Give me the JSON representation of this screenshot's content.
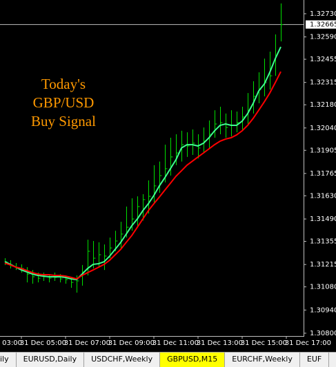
{
  "chart_data": {
    "type": "ohlc",
    "x": [
      4.25,
      4.5,
      4.75,
      5,
      5.25,
      5.5,
      5.75,
      6,
      6.25,
      6.5,
      6.75,
      7,
      7.25,
      7.5,
      7.75,
      8,
      8.25,
      8.5,
      8.75,
      9,
      9.25,
      9.5,
      9.75,
      10,
      10.25,
      10.5,
      10.75,
      11,
      11.25,
      11.5,
      11.75,
      12,
      12.25,
      12.5,
      12.75,
      13,
      13.25,
      13.5,
      13.75,
      14,
      14.25,
      14.5,
      14.75,
      15,
      15.25,
      15.5,
      15.75,
      16,
      16.25,
      16.5,
      16.75
    ],
    "xlim": [
      4.03125,
      17.78125
    ],
    "xticks": [
      {
        "value": 3,
        "label": "03:00"
      },
      {
        "value": 5,
        "label": "31 Dec 05:00"
      },
      {
        "value": 7,
        "label": "31 Dec 07:00"
      },
      {
        "value": 9,
        "label": "31 Dec 09:00"
      },
      {
        "value": 11,
        "label": "31 Dec 11:00"
      },
      {
        "value": 13,
        "label": "31 Dec 13:00"
      },
      {
        "value": 15,
        "label": "31 Dec 15:00"
      },
      {
        "value": 17,
        "label": "31 Dec 17:00"
      }
    ],
    "ylim": [
      1.30783,
      1.32813
    ],
    "yticks": [
      {
        "value": 1.3273,
        "label": "1.32730"
      },
      {
        "value": 1.3259,
        "label": "1.32590"
      },
      {
        "value": 1.32455,
        "label": "1.32455"
      },
      {
        "value": 1.32315,
        "label": "1.32315"
      },
      {
        "value": 1.3218,
        "label": "1.32180"
      },
      {
        "value": 1.3204,
        "label": "1.32040"
      },
      {
        "value": 1.31905,
        "label": "1.31905"
      },
      {
        "value": 1.31765,
        "label": "1.31765"
      },
      {
        "value": 1.3163,
        "label": "1.31630"
      },
      {
        "value": 1.3149,
        "label": "1.31490"
      },
      {
        "value": 1.31355,
        "label": "1.31355"
      },
      {
        "value": 1.31215,
        "label": "1.31215"
      },
      {
        "value": 1.3108,
        "label": "1.31080"
      },
      {
        "value": 1.3094,
        "label": "1.30940"
      },
      {
        "value": 1.308,
        "label": "1.30800"
      }
    ],
    "series": [
      {
        "type": "ohlc",
        "color": "#00e000",
        "high": [
          1.31253,
          1.31241,
          1.31224,
          1.31216,
          1.31199,
          1.31182,
          1.31166,
          1.31166,
          1.31157,
          1.31166,
          1.31157,
          1.31149,
          1.31141,
          1.31149,
          1.31212,
          1.31365,
          1.31357,
          1.31349,
          1.31336,
          1.31378,
          1.31419,
          1.31473,
          1.31565,
          1.31615,
          1.31627,
          1.3164,
          1.31723,
          1.31815,
          1.31837,
          1.31939,
          1.31981,
          1.32002,
          1.32023,
          1.32014,
          1.32031,
          1.32002,
          1.32043,
          1.32085,
          1.32147,
          1.32168,
          1.32127,
          1.32147,
          1.32139,
          1.32168,
          1.32251,
          1.32322,
          1.32376,
          1.32459,
          1.32501,
          1.32605,
          1.32792
        ],
        "low": [
          1.31212,
          1.31191,
          1.31182,
          1.31166,
          1.31107,
          1.31099,
          1.31107,
          1.31116,
          1.31107,
          1.31116,
          1.31107,
          1.31099,
          1.31074,
          1.31045,
          1.31087,
          1.31149,
          1.31191,
          1.31199,
          1.31182,
          1.31253,
          1.31295,
          1.31315,
          1.31378,
          1.31419,
          1.3144,
          1.31481,
          1.31523,
          1.31586,
          1.31648,
          1.31711,
          1.31752,
          1.31815,
          1.31837,
          1.31865,
          1.31877,
          1.31856,
          1.31889,
          1.31919,
          1.31981,
          1.32002,
          1.31981,
          1.31989,
          1.32014,
          1.32031,
          1.32064,
          1.32127,
          1.32189,
          1.32231,
          1.32272,
          1.32355,
          1.32563
        ],
        "close": [
          1.31232,
          1.31212,
          1.31199,
          1.31191,
          1.31157,
          1.31141,
          1.31132,
          1.31141,
          1.31132,
          1.31137,
          1.31128,
          1.31124,
          1.31107,
          1.31116,
          1.3117,
          1.31295,
          1.31253,
          1.31274,
          1.31266,
          1.31315,
          1.31357,
          1.31399,
          1.3144,
          1.3149,
          1.31565,
          1.31607,
          1.31627,
          1.3169,
          1.31752,
          1.31794,
          1.31865,
          1.31889,
          1.31939,
          1.31931,
          1.31948,
          1.31919,
          1.3196,
          1.32002,
          1.32064,
          1.32072,
          1.32043,
          1.32056,
          1.32072,
          1.32106,
          1.32147,
          1.32231,
          1.32272,
          1.32314,
          1.32355,
          1.3248,
          1.32665
        ]
      },
      {
        "type": "line",
        "color": "#3dff8f",
        "values": [
          1.31232,
          1.31216,
          1.31199,
          1.31182,
          1.3117,
          1.31157,
          1.31149,
          1.31145,
          1.31141,
          1.31141,
          1.31141,
          1.31137,
          1.31128,
          1.31124,
          1.31157,
          1.31191,
          1.31216,
          1.3122,
          1.31232,
          1.31266,
          1.31307,
          1.31349,
          1.31399,
          1.31449,
          1.3149,
          1.3154,
          1.31582,
          1.31632,
          1.3169,
          1.3174,
          1.31794,
          1.31848,
          1.31919,
          1.31939,
          1.31939,
          1.31931,
          1.31948,
          1.31981,
          1.32023,
          1.32056,
          1.32064,
          1.32056,
          1.32056,
          1.32081,
          1.32127,
          1.32189,
          1.32264,
          1.32305,
          1.32376,
          1.32459,
          1.3253
        ]
      },
      {
        "type": "line",
        "color": "#ff0000",
        "values": [
          1.31224,
          1.31212,
          1.31199,
          1.31191,
          1.31178,
          1.31166,
          1.31157,
          1.31153,
          1.31153,
          1.31149,
          1.31149,
          1.31145,
          1.31137,
          1.31128,
          1.31149,
          1.31166,
          1.31182,
          1.31199,
          1.31216,
          1.31241,
          1.31274,
          1.31307,
          1.31349,
          1.3139,
          1.3144,
          1.3149,
          1.3154,
          1.31582,
          1.31623,
          1.31665,
          1.31706,
          1.31748,
          1.31781,
          1.31815,
          1.3184,
          1.31865,
          1.31889,
          1.31914,
          1.31939,
          1.3196,
          1.31973,
          1.31981,
          1.31998,
          1.32023,
          1.32056,
          1.32098,
          1.32147,
          1.32197,
          1.32251,
          1.32314,
          1.3238
        ]
      }
    ],
    "current_price": 1.32665,
    "annotation": [
      "Today's",
      "GBP/USD",
      "Buy Signal"
    ],
    "annotation_color": "#ff9900"
  },
  "tabs": [
    "ily",
    "EURUSD,Daily",
    "USDCHF,Weekly",
    "GBPUSD,M15",
    "EURCHF,Weekly",
    "EUF"
  ],
  "active_tab": 3
}
